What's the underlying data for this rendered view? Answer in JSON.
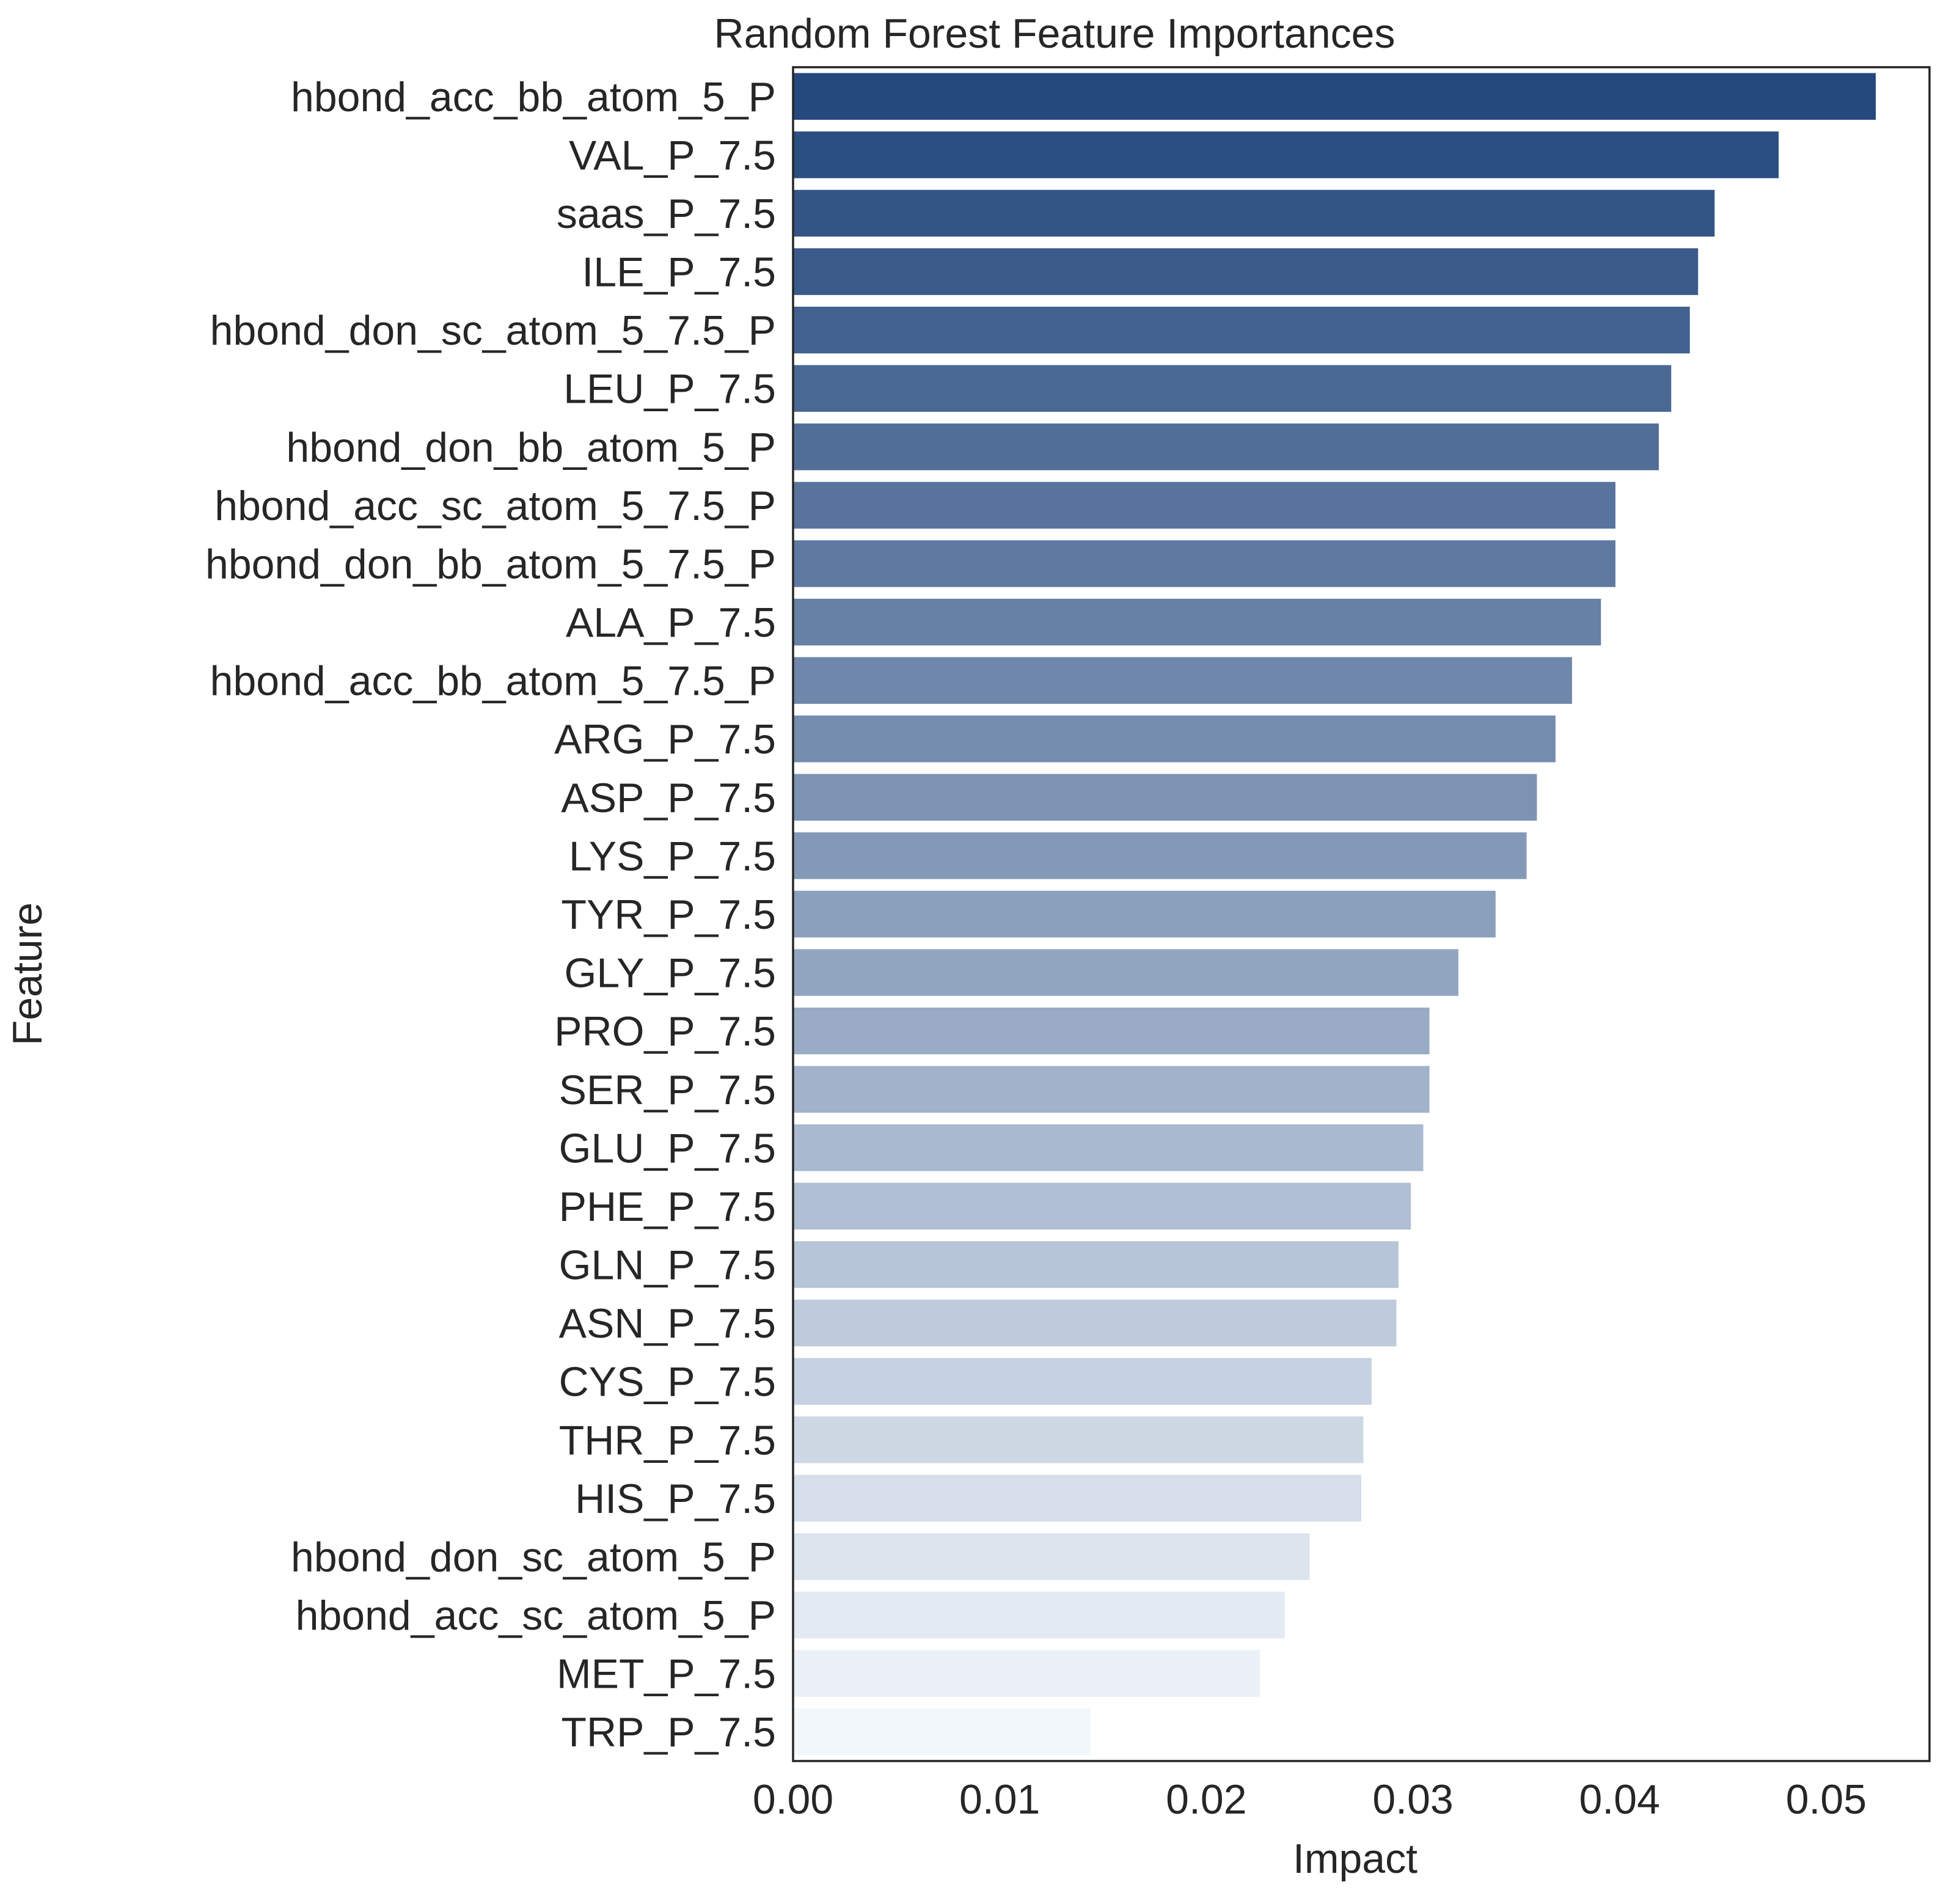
{
  "chart_data": {
    "type": "bar",
    "orientation": "horizontal",
    "title": "Random Forest Feature Importances",
    "xlabel": "Impact",
    "ylabel": "Feature",
    "xlim": [
      0,
      0.055
    ],
    "xticks": [
      "0.00",
      "0.01",
      "0.02",
      "0.03",
      "0.04",
      "0.05"
    ],
    "grid": false,
    "legend": "none",
    "palette": "Blues_r",
    "color_dark": "#08306b",
    "color_light": "#f7fbff",
    "categories": [
      "hbond_acc_bb_atom_5_P",
      "VAL_P_7.5",
      "saas_P_7.5",
      "ILE_P_7.5",
      "hbond_don_sc_atom_5_7.5_P",
      "LEU_P_7.5",
      "hbond_don_bb_atom_5_P",
      "hbond_acc_sc_atom_5_7.5_P",
      "hbond_don_bb_atom_5_7.5_P",
      "ALA_P_7.5",
      "hbond_acc_bb_atom_5_7.5_P",
      "ARG_P_7.5",
      "ASP_P_7.5",
      "LYS_P_7.5",
      "TYR_P_7.5",
      "GLY_P_7.5",
      "PRO_P_7.5",
      "SER_P_7.5",
      "GLU_P_7.5",
      "PHE_P_7.5",
      "GLN_P_7.5",
      "ASN_P_7.5",
      "CYS_P_7.5",
      "THR_P_7.5",
      "HIS_P_7.5",
      "hbond_don_sc_atom_5_P",
      "hbond_acc_sc_atom_5_P",
      "MET_P_7.5",
      "TRP_P_7.5"
    ],
    "values": [
      0.0524,
      0.0477,
      0.0446,
      0.0438,
      0.0434,
      0.0425,
      0.0419,
      0.0398,
      0.0398,
      0.0391,
      0.0377,
      0.0369,
      0.036,
      0.0355,
      0.034,
      0.0322,
      0.0308,
      0.0308,
      0.0305,
      0.0299,
      0.0293,
      0.0292,
      0.028,
      0.0276,
      0.0275,
      0.025,
      0.0238,
      0.0226,
      0.0144
    ]
  }
}
